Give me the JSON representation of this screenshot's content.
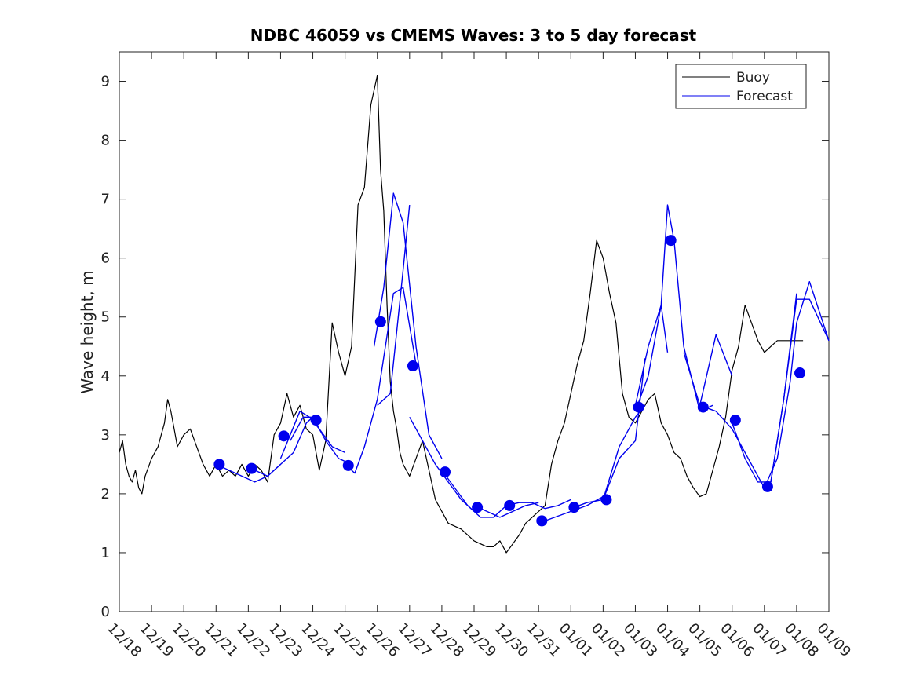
{
  "chart_data": {
    "type": "line",
    "title": "NDBC 46059 vs CMEMS Waves: 3 to 5 day forecast",
    "xlabel": "",
    "ylabel": "Wave height, m",
    "xlim": [
      0,
      22
    ],
    "ylim": [
      0,
      9.5
    ],
    "x_tick_labels": [
      "12/18",
      "12/19",
      "12/20",
      "12/21",
      "12/22",
      "12/23",
      "12/24",
      "12/25",
      "12/26",
      "12/27",
      "12/28",
      "12/29",
      "12/30",
      "12/31",
      "01/01",
      "01/02",
      "01/03",
      "01/04",
      "01/05",
      "01/06",
      "01/07",
      "01/08",
      "01/09"
    ],
    "y_ticks": [
      0,
      1,
      2,
      3,
      4,
      5,
      6,
      7,
      8,
      9
    ],
    "grid": false,
    "legend": {
      "position": "top-right",
      "entries": [
        "Buoy",
        "Forecast"
      ]
    },
    "colors": {
      "buoy": "#000000",
      "forecast": "#0000ee"
    },
    "series": [
      {
        "name": "Buoy",
        "x": [
          0,
          0.1,
          0.2,
          0.3,
          0.4,
          0.5,
          0.6,
          0.7,
          0.8,
          1.0,
          1.2,
          1.4,
          1.5,
          1.6,
          1.7,
          1.8,
          2.0,
          2.2,
          2.4,
          2.6,
          2.8,
          3.0,
          3.2,
          3.4,
          3.6,
          3.8,
          4.0,
          4.2,
          4.4,
          4.6,
          4.8,
          5.0,
          5.2,
          5.4,
          5.6,
          5.8,
          6.0,
          6.2,
          6.4,
          6.6,
          6.8,
          7.0,
          7.2,
          7.4,
          7.6,
          7.8,
          8.0,
          8.1,
          8.2,
          8.3,
          8.4,
          8.5,
          8.6,
          8.7,
          8.8,
          9.0,
          9.2,
          9.4,
          9.6,
          9.8,
          10.0,
          10.2,
          10.4,
          10.6,
          10.8,
          11.0,
          11.2,
          11.4,
          11.6,
          11.8,
          12.0,
          12.2,
          12.4,
          12.6,
          12.8,
          13.0,
          13.2,
          13.4,
          13.6,
          13.8,
          14.0,
          14.2,
          14.4,
          14.6,
          14.8,
          15.0,
          15.2,
          15.4,
          15.6,
          15.8,
          16.0,
          16.2,
          16.4,
          16.6,
          16.8,
          17.0,
          17.2,
          17.4,
          17.6,
          17.8,
          18.0,
          18.2,
          18.4,
          18.6,
          18.8,
          19.0,
          19.2,
          19.4,
          19.6,
          19.8,
          20.0,
          20.2,
          20.4,
          20.6,
          20.8,
          21.0,
          21.2
        ],
        "values": [
          2.7,
          2.9,
          2.5,
          2.3,
          2.2,
          2.4,
          2.1,
          2.0,
          2.3,
          2.6,
          2.8,
          3.2,
          3.6,
          3.4,
          3.1,
          2.8,
          3.0,
          3.1,
          2.8,
          2.5,
          2.3,
          2.5,
          2.3,
          2.4,
          2.3,
          2.5,
          2.3,
          2.5,
          2.4,
          2.2,
          3.0,
          3.2,
          3.7,
          3.3,
          3.5,
          3.1,
          3.0,
          2.4,
          2.9,
          4.9,
          4.4,
          4.0,
          4.5,
          6.9,
          7.2,
          8.6,
          9.1,
          7.5,
          6.8,
          5.2,
          3.9,
          3.4,
          3.1,
          2.7,
          2.5,
          2.3,
          2.6,
          2.9,
          2.4,
          1.9,
          1.7,
          1.5,
          1.45,
          1.4,
          1.3,
          1.2,
          1.15,
          1.1,
          1.1,
          1.2,
          1.0,
          1.15,
          1.3,
          1.5,
          1.6,
          1.7,
          1.8,
          2.5,
          2.9,
          3.2,
          3.7,
          4.2,
          4.6,
          5.4,
          6.3,
          6.0,
          5.4,
          4.9,
          3.7,
          3.3,
          3.2,
          3.4,
          3.6,
          3.7,
          3.2,
          3.0,
          2.7,
          2.6,
          2.3,
          2.1,
          1.95,
          2.0,
          2.4,
          2.8,
          3.3,
          4.1,
          4.5,
          5.2,
          4.9,
          4.6,
          4.4,
          4.5,
          4.6,
          4.6,
          4.6,
          4.6,
          4.6
        ]
      },
      {
        "name": "Forecast",
        "segments": [
          {
            "x": [
              3.0,
              3.4,
              3.8,
              4.2,
              4.6,
              5.0
            ],
            "values": [
              2.5,
              2.4,
              2.3,
              2.2,
              2.3,
              2.5
            ]
          },
          {
            "x": [
              4.2,
              4.6,
              5.0,
              5.4,
              5.8,
              6.0
            ],
            "values": [
              2.4,
              2.3,
              2.5,
              2.7,
              3.2,
              3.3
            ]
          },
          {
            "x": [
              5.0,
              5.3,
              5.6,
              5.9,
              6.2,
              6.6,
              7.0
            ],
            "values": [
              2.6,
              3.0,
              3.4,
              3.3,
              3.1,
              2.8,
              2.7
            ]
          },
          {
            "x": [
              5.3,
              5.7,
              6.0,
              6.4,
              6.8,
              7.2
            ],
            "values": [
              2.9,
              3.3,
              3.3,
              2.9,
              2.6,
              2.5
            ]
          },
          {
            "x": [
              7.0,
              7.3,
              7.6,
              8.0,
              8.5,
              8.8,
              9.2
            ],
            "values": [
              2.5,
              2.35,
              2.8,
              3.6,
              5.4,
              5.5,
              4.2
            ]
          },
          {
            "x": [
              7.9,
              8.2,
              8.5,
              8.8,
              9.2,
              9.6,
              10.0
            ],
            "values": [
              4.5,
              5.5,
              7.1,
              6.6,
              4.5,
              3.0,
              2.6
            ]
          },
          {
            "x": [
              8.0,
              8.4,
              8.8,
              9.0
            ],
            "values": [
              3.5,
              3.7,
              5.8,
              6.9
            ]
          },
          {
            "x": [
              9.0,
              9.4,
              9.8,
              10.2,
              10.6,
              11.0
            ],
            "values": [
              3.3,
              2.9,
              2.5,
              2.2,
              1.9,
              1.7
            ]
          },
          {
            "x": [
              10.0,
              10.4,
              10.8,
              11.2,
              11.6,
              12.0
            ],
            "values": [
              2.4,
              2.1,
              1.8,
              1.6,
              1.6,
              1.8
            ]
          },
          {
            "x": [
              11.0,
              11.4,
              11.8,
              12.2,
              12.6,
              13.0
            ],
            "values": [
              1.8,
              1.7,
              1.6,
              1.7,
              1.8,
              1.85
            ]
          },
          {
            "x": [
              12.0,
              12.4,
              12.8,
              13.2,
              13.6,
              14.0
            ],
            "values": [
              1.8,
              1.85,
              1.85,
              1.75,
              1.8,
              1.9
            ]
          },
          {
            "x": [
              13.0,
              13.5,
              14.0,
              14.5,
              15.0
            ],
            "values": [
              1.5,
              1.6,
              1.7,
              1.8,
              1.95
            ]
          },
          {
            "x": [
              14.0,
              14.5,
              15.0,
              15.5,
              16.0,
              16.3
            ],
            "values": [
              1.75,
              1.85,
              1.9,
              2.8,
              3.3,
              3.5
            ]
          },
          {
            "x": [
              15.0,
              15.5,
              16.0,
              16.3
            ],
            "values": [
              1.9,
              2.6,
              2.9,
              4.3
            ]
          },
          {
            "x": [
              16.0,
              16.4,
              16.8,
              17.0,
              17.2,
              17.5,
              18.0,
              18.4
            ],
            "values": [
              3.5,
              4.5,
              5.2,
              6.9,
              6.3,
              4.5,
              3.4,
              3.5
            ]
          },
          {
            "x": [
              16.0,
              16.4,
              16.8,
              17.0
            ],
            "values": [
              3.4,
              4.0,
              5.2,
              4.4
            ]
          },
          {
            "x": [
              17.5,
              18.0,
              18.5,
              19.0
            ],
            "values": [
              4.4,
              3.5,
              4.7,
              4.0
            ]
          },
          {
            "x": [
              18.0,
              18.5,
              19.0,
              19.4,
              19.8,
              20.0
            ],
            "values": [
              3.5,
              3.4,
              3.1,
              2.7,
              2.3,
              2.1
            ]
          },
          {
            "x": [
              19.0,
              19.4,
              19.8,
              20.2,
              20.6,
              21.0
            ],
            "values": [
              3.2,
              2.6,
              2.2,
              2.2,
              3.6,
              5.4
            ]
          },
          {
            "x": [
              20.0,
              20.4,
              20.8,
              21.0,
              21.4,
              22.0
            ],
            "values": [
              2.1,
              2.6,
              3.9,
              4.9,
              5.6,
              4.6
            ]
          },
          {
            "x": [
              20.2,
              20.6,
              21.0,
              21.4,
              22.0
            ],
            "values": [
              2.2,
              3.6,
              5.3,
              5.3,
              4.6
            ]
          }
        ],
        "markers": {
          "x": [
            3.1,
            4.1,
            5.1,
            6.1,
            7.1,
            8.1,
            9.1,
            10.1,
            11.1,
            12.1,
            13.1,
            14.1,
            15.1,
            16.1,
            17.1,
            18.1,
            19.1,
            20.1,
            21.1
          ],
          "values": [
            2.5,
            2.43,
            2.98,
            3.25,
            2.48,
            4.92,
            4.17,
            2.37,
            1.77,
            1.8,
            1.54,
            1.77,
            1.9,
            3.47,
            6.3,
            3.47,
            3.25,
            2.12,
            4.05
          ]
        }
      }
    ]
  }
}
